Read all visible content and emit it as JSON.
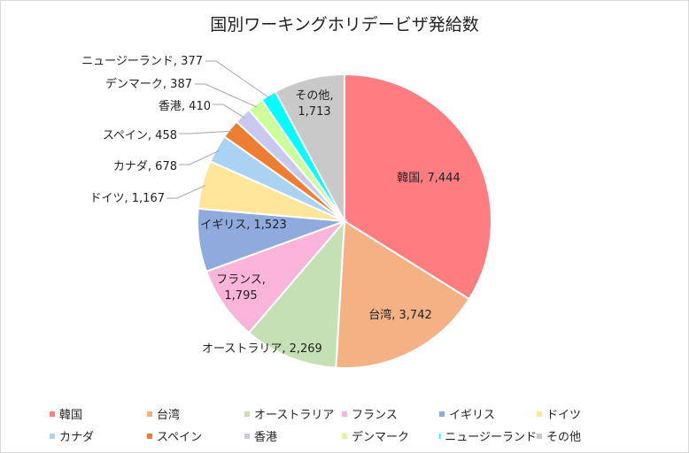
{
  "chart_data": {
    "type": "pie",
    "title": "国別ワーキングホリデービザ発給数",
    "slices": [
      {
        "label": "韓国",
        "value": 7444,
        "value_text": "7,444",
        "color": "#FF7C80"
      },
      {
        "label": "台湾",
        "value": 3742,
        "value_text": "3,742",
        "color": "#F4B183"
      },
      {
        "label": "オーストラリア",
        "value": 2269,
        "value_text": "2,269",
        "color": "#C5E0B4"
      },
      {
        "label": "フランス",
        "value": 1795,
        "value_text": "1,795",
        "color": "#F8B4D9"
      },
      {
        "label": "イギリス",
        "value": 1523,
        "value_text": "1,523",
        "color": "#8FAADC"
      },
      {
        "label": "ドイツ",
        "value": 1167,
        "value_text": "1,167",
        "color": "#FFE699"
      },
      {
        "label": "カナダ",
        "value": 678,
        "value_text": "678",
        "color": "#A9D3F0"
      },
      {
        "label": "スペイン",
        "value": 458,
        "value_text": "458",
        "color": "#ED7D31"
      },
      {
        "label": "香港",
        "value": 410,
        "value_text": "410",
        "color": "#C9C9F0"
      },
      {
        "label": "デンマーク",
        "value": 387,
        "value_text": "387",
        "color": "#CCFF99"
      },
      {
        "label": "ニュージーランド",
        "value": 377,
        "value_text": "377",
        "color": "#00FFFF"
      },
      {
        "label": "その他",
        "value": 1713,
        "value_text": "1,713",
        "color": "#C9C9C9"
      }
    ],
    "legend_position": "bottom"
  }
}
